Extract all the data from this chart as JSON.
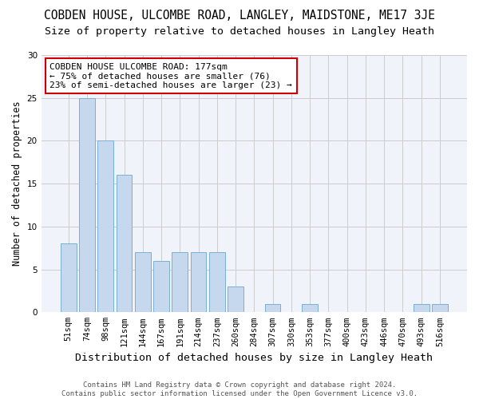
{
  "title": "COBDEN HOUSE, ULCOMBE ROAD, LANGLEY, MAIDSTONE, ME17 3JE",
  "subtitle": "Size of property relative to detached houses in Langley Heath",
  "xlabel": "Distribution of detached houses by size in Langley Heath",
  "ylabel": "Number of detached properties",
  "categories": [
    "51sqm",
    "74sqm",
    "98sqm",
    "121sqm",
    "144sqm",
    "167sqm",
    "191sqm",
    "214sqm",
    "237sqm",
    "260sqm",
    "284sqm",
    "307sqm",
    "330sqm",
    "353sqm",
    "377sqm",
    "400sqm",
    "423sqm",
    "446sqm",
    "470sqm",
    "493sqm",
    "516sqm"
  ],
  "values": [
    8,
    25,
    20,
    16,
    7,
    6,
    7,
    7,
    7,
    3,
    0,
    1,
    0,
    1,
    0,
    0,
    0,
    0,
    0,
    1,
    1
  ],
  "bar_color": "#c5d8ed",
  "bar_edge_color": "#7aafd4",
  "annotation_box_text": "COBDEN HOUSE ULCOMBE ROAD: 177sqm\n← 75% of detached houses are smaller (76)\n23% of semi-detached houses are larger (23) →",
  "annotation_box_color": "#ffffff",
  "annotation_box_edgecolor": "#cc0000",
  "ylim": [
    0,
    30
  ],
  "yticks": [
    0,
    5,
    10,
    15,
    20,
    25,
    30
  ],
  "grid_color": "#cccccc",
  "background_color": "#f0f4fa",
  "footer_text": "Contains HM Land Registry data © Crown copyright and database right 2024.\nContains public sector information licensed under the Open Government Licence v3.0.",
  "title_fontsize": 10.5,
  "subtitle_fontsize": 9.5,
  "xlabel_fontsize": 9.5,
  "ylabel_fontsize": 8.5,
  "tick_fontsize": 7.5,
  "annot_fontsize": 8,
  "footer_fontsize": 6.5
}
